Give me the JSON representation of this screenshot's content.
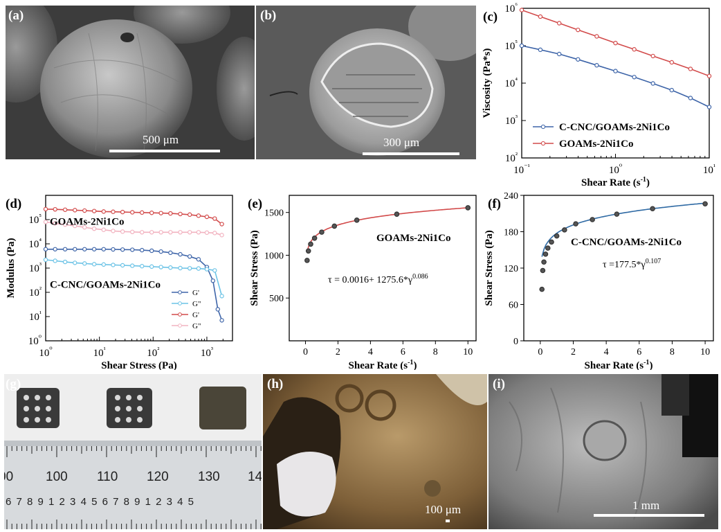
{
  "panels": {
    "a": {
      "label": "(a)",
      "scale": "500 μm"
    },
    "b": {
      "label": "(b)",
      "scale": "300 μm"
    },
    "g": {
      "label": "(g)",
      "ruler_top": [
        "00",
        "100",
        "110",
        "120",
        "130",
        "14"
      ],
      "ruler_bottom": "6 7 8 9 1 2 3 4 5 6 7 8 9 1 2 3 4 5"
    },
    "h": {
      "label": "(h)",
      "scale": "100 μm"
    },
    "i": {
      "label": "(i)",
      "scale": "1 mm"
    }
  },
  "colors": {
    "blue": "#3d64a8",
    "red": "#d24a4a",
    "lightblue": "#6cc3e6",
    "pink": "#f2b3c0",
    "fit": "#c53b3b",
    "fitblue": "#2f6aa4"
  },
  "chart_data": [
    {
      "panel": "(c)",
      "type": "line",
      "xlabel": "Shear Rate (s⁻¹)",
      "ylabel": "Viscosity (Pa*s)",
      "xscale": "log",
      "yscale": "log",
      "xlim": [
        0.1,
        10
      ],
      "ylim": [
        100,
        1000000
      ],
      "xticks": [
        "10⁻¹",
        "10⁰",
        "10¹"
      ],
      "yticks": [
        "10²",
        "10³",
        "10⁴",
        "10⁵",
        "10⁶"
      ],
      "legend": "bottom-left",
      "series": [
        {
          "name": "C-CNC/GOAMs-2Ni1Co",
          "color": "#3d64a8",
          "x": [
            0.1,
            0.158,
            0.251,
            0.398,
            0.631,
            1.0,
            1.585,
            2.512,
            3.981,
            6.31,
            10.0
          ],
          "y": [
            100000,
            78000,
            60000,
            43000,
            30000,
            21000,
            14500,
            9800,
            6500,
            4000,
            2300
          ]
        },
        {
          "name": "GOAMs-2Ni1Co",
          "color": "#d24a4a",
          "x": [
            0.1,
            0.158,
            0.251,
            0.398,
            0.631,
            1.0,
            1.585,
            2.512,
            3.981,
            6.31,
            10.0
          ],
          "y": [
            900000,
            600000,
            400000,
            265000,
            178000,
            118000,
            80000,
            53000,
            36000,
            24000,
            15500
          ]
        }
      ]
    },
    {
      "panel": "(d)",
      "type": "line",
      "xlabel": "Shear Stress (Pa)",
      "ylabel": "Modulus (Pa)",
      "xscale": "log",
      "yscale": "log",
      "xlim": [
        1,
        3000
      ],
      "ylim": [
        1,
        1000000
      ],
      "xticks": [
        "10⁰",
        "10¹",
        "10²",
        "10³"
      ],
      "yticks": [
        "10⁰",
        "10¹",
        "10²",
        "10³",
        "10⁴",
        "10⁵"
      ],
      "annotations": [
        "GOAMs-2Ni1Co",
        "C-CNC/GOAMs-2Ni1Co"
      ],
      "legend": "bottom-right",
      "series": [
        {
          "name": "G'",
          "color": "#3d64a8",
          "x": [
            1,
            1.5,
            2.3,
            3.5,
            5.3,
            8,
            12,
            18,
            27,
            41,
            62,
            94,
            140,
            210,
            320,
            480,
            700,
            1000,
            1300,
            1600,
            1900
          ],
          "y": [
            6000,
            6000,
            6000,
            6000,
            6000,
            6000,
            6000,
            5900,
            5800,
            5700,
            5500,
            5200,
            4800,
            4300,
            3700,
            3000,
            2300,
            1100,
            300,
            20,
            7
          ]
        },
        {
          "name": "G\"",
          "color": "#6cc3e6",
          "x": [
            1,
            1.5,
            2.3,
            3.5,
            5.3,
            8,
            12,
            18,
            27,
            41,
            62,
            94,
            140,
            210,
            320,
            480,
            700,
            1000,
            1400,
            1900
          ],
          "y": [
            2200,
            2000,
            1800,
            1650,
            1550,
            1450,
            1400,
            1350,
            1300,
            1250,
            1200,
            1150,
            1100,
            1050,
            1000,
            980,
            960,
            900,
            800,
            70
          ]
        },
        {
          "name": "G'",
          "color": "#d24a4a",
          "x": [
            1,
            1.5,
            2.3,
            3.5,
            5.3,
            8,
            12,
            18,
            27,
            41,
            62,
            94,
            140,
            210,
            320,
            480,
            700,
            1000,
            1400,
            1900
          ],
          "y": [
            270000,
            265000,
            255000,
            245000,
            235000,
            225000,
            215000,
            210000,
            205000,
            200000,
            195000,
            190000,
            185000,
            180000,
            170000,
            160000,
            145000,
            130000,
            110000,
            65000
          ]
        },
        {
          "name": "G\"",
          "color": "#f2b3c0",
          "x": [
            1,
            1.5,
            2.3,
            3.5,
            5.3,
            8,
            12,
            18,
            27,
            41,
            62,
            94,
            140,
            210,
            320,
            480,
            700,
            1000,
            1400,
            1900
          ],
          "y": [
            80000,
            70000,
            62000,
            55000,
            48000,
            42000,
            38000,
            34000,
            32000,
            31000,
            30000,
            30000,
            30000,
            30000,
            30000,
            30000,
            30000,
            29000,
            28000,
            23000
          ]
        }
      ]
    },
    {
      "panel": "(e)",
      "type": "scatter",
      "xlabel": "Shear Rate (s⁻¹)",
      "ylabel": "Shear Stress (Pa)",
      "xlim": [
        -1,
        10.5
      ],
      "ylim": [
        0,
        1700
      ],
      "xticks": [
        0,
        2,
        4,
        6,
        8,
        10
      ],
      "yticks": [
        500,
        1000,
        1500
      ],
      "annotations": [
        "GOAMs-2Ni1Co",
        "τ = 0.0016+ 1275.6*γ0.086"
      ],
      "fit": {
        "a": 0.0016,
        "b": 1275.6,
        "n": 0.086
      },
      "series": [
        {
          "name": "GOAMs-2Ni1Co",
          "color": "#d24a4a",
          "x": [
            0.1,
            0.18,
            0.32,
            0.56,
            1.0,
            1.78,
            3.16,
            5.62,
            10.0
          ],
          "y": [
            940,
            1050,
            1130,
            1200,
            1270,
            1340,
            1410,
            1480,
            1555
          ]
        }
      ]
    },
    {
      "panel": "(f)",
      "type": "scatter",
      "xlabel": "Shear Rate (s⁻¹)",
      "ylabel": "Shear Stress (Pa)",
      "xlim": [
        -1,
        10.5
      ],
      "ylim": [
        0,
        240
      ],
      "xticks": [
        0,
        2,
        4,
        6,
        8,
        10
      ],
      "yticks": [
        0,
        60,
        120,
        180,
        240
      ],
      "annotations": [
        "C-CNC/GOAMs-2Ni1Co",
        "τ =177.5*γ0.107"
      ],
      "fit": {
        "a": 0,
        "b": 177.5,
        "n": 0.107
      },
      "series": [
        {
          "name": "C-CNC/GOAMs-2Ni1Co",
          "color": "#2f6aa4",
          "x": [
            0.1,
            0.15,
            0.22,
            0.32,
            0.46,
            0.68,
            1.0,
            1.47,
            2.15,
            3.16,
            4.64,
            6.81,
            10.0
          ],
          "y": [
            85,
            116,
            130,
            143,
            153,
            163,
            173,
            183,
            193,
            200,
            209,
            218,
            226
          ]
        }
      ]
    }
  ]
}
